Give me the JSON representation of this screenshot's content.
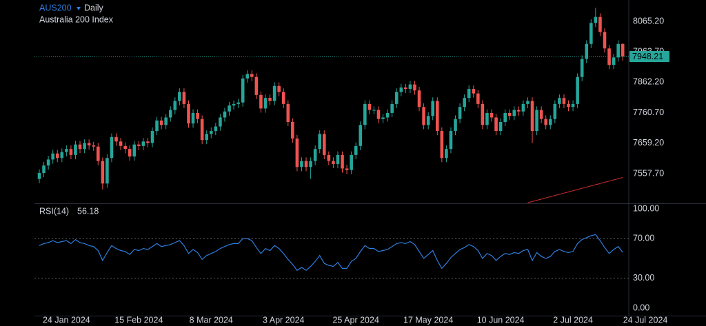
{
  "chart_data": [
    {
      "type": "candlestick",
      "symbol": "AUS200",
      "interval": "Daily",
      "subtitle": "Australia 200 Index",
      "up_color": "#26a69a",
      "down_color": "#ef5350",
      "last_price_line": true,
      "ylim": [
        7459,
        8136.4
      ],
      "yticks": [
        {
          "value": 7557.7,
          "label": "7557.70"
        },
        {
          "value": 7659.2,
          "label": "7659.20"
        },
        {
          "value": 7760.7,
          "label": "7760.70"
        },
        {
          "value": 7862.2,
          "label": "7862.20"
        },
        {
          "value": 7963.7,
          "label": "7963.70"
        },
        {
          "value": 8065.2,
          "label": "8065.20"
        }
      ],
      "open": [
        7540,
        7560,
        7585,
        7605,
        7625,
        7610,
        7630,
        7640,
        7620,
        7655,
        7640,
        7660,
        7652,
        7648,
        7600,
        7525,
        7610,
        7680,
        7665,
        7650,
        7640,
        7615,
        7655,
        7650,
        7665,
        7660,
        7700,
        7735,
        7720,
        7745,
        7770,
        7800,
        7830,
        7790,
        7725,
        7760,
        7740,
        7670,
        7690,
        7700,
        7715,
        7745,
        7765,
        7785,
        7790,
        7795,
        7875,
        7890,
        7880,
        7820,
        7775,
        7810,
        7800,
        7850,
        7830,
        7790,
        7730,
        7675,
        7580,
        7600,
        7580,
        7600,
        7640,
        7690,
        7620,
        7600,
        7590,
        7620,
        7575,
        7570,
        7620,
        7650,
        7720,
        7790,
        7770,
        7770,
        7740,
        7745,
        7760,
        7790,
        7830,
        7845,
        7840,
        7855,
        7835,
        7780,
        7720,
        7750,
        7800,
        7700,
        7610,
        7640,
        7700,
        7740,
        7780,
        7810,
        7840,
        7825,
        7790,
        7720,
        7760,
        7745,
        7700,
        7730,
        7760,
        7750,
        7770,
        7765,
        7790,
        7800,
        7700,
        7770,
        7740,
        7720,
        7740,
        7790,
        7810,
        7790,
        7780,
        7790,
        7880,
        7940,
        7990,
        8060,
        8080,
        8030,
        7975,
        7920,
        7945,
        7990,
        null,
        null,
        null,
        null,
        null
      ],
      "high": [
        7572,
        7597,
        7617,
        7637,
        7637,
        7642,
        7652,
        7652,
        7667,
        7667,
        7672,
        7672,
        7664,
        7660,
        7612,
        7622,
        7692,
        7692,
        7677,
        7662,
        7652,
        7667,
        7667,
        7677,
        7677,
        7712,
        7747,
        7747,
        7757,
        7782,
        7812,
        7842,
        7842,
        7802,
        7772,
        7772,
        7752,
        7702,
        7712,
        7727,
        7757,
        7777,
        7797,
        7802,
        7807,
        7887,
        7902,
        7902,
        7892,
        7832,
        7822,
        7822,
        7862,
        7862,
        7842,
        7802,
        7742,
        7687,
        7612,
        7612,
        7612,
        7652,
        7702,
        7702,
        7632,
        7612,
        7632,
        7632,
        7587,
        7632,
        7662,
        7732,
        7802,
        7802,
        7782,
        7782,
        7757,
        7772,
        7802,
        7842,
        7857,
        7857,
        7867,
        7867,
        7847,
        7792,
        7762,
        7812,
        7812,
        7712,
        7652,
        7712,
        7752,
        7792,
        7822,
        7852,
        7852,
        7837,
        7802,
        7772,
        7772,
        7757,
        7742,
        7772,
        7772,
        7782,
        7782,
        7802,
        7812,
        7812,
        7782,
        7782,
        7752,
        7752,
        7802,
        7822,
        7822,
        7802,
        7802,
        7892,
        7952,
        8002,
        8072,
        8110,
        8092,
        8042,
        7987,
        7957,
        8002,
        7992,
        null,
        null,
        null,
        null,
        null
      ],
      "low": [
        7526,
        7546,
        7571,
        7591,
        7596,
        7596,
        7616,
        7606,
        7606,
        7626,
        7626,
        7638,
        7634,
        7586,
        7505,
        7511,
        7596,
        7651,
        7636,
        7626,
        7601,
        7601,
        7636,
        7636,
        7646,
        7646,
        7686,
        7706,
        7706,
        7731,
        7756,
        7786,
        7776,
        7711,
        7711,
        7726,
        7656,
        7656,
        7676,
        7686,
        7701,
        7731,
        7751,
        7771,
        7776,
        7781,
        7861,
        7866,
        7806,
        7761,
        7761,
        7786,
        7786,
        7816,
        7776,
        7716,
        7661,
        7566,
        7566,
        7566,
        7540,
        7586,
        7626,
        7606,
        7586,
        7576,
        7576,
        7561,
        7556,
        7556,
        7606,
        7636,
        7706,
        7756,
        7756,
        7726,
        7726,
        7731,
        7746,
        7776,
        7816,
        7826,
        7826,
        7821,
        7766,
        7706,
        7706,
        7736,
        7686,
        7596,
        7596,
        7626,
        7686,
        7726,
        7766,
        7796,
        7811,
        7776,
        7706,
        7706,
        7731,
        7686,
        7686,
        7716,
        7736,
        7736,
        7751,
        7751,
        7776,
        7660,
        7686,
        7726,
        7706,
        7706,
        7726,
        7776,
        7776,
        7766,
        7766,
        7776,
        7866,
        7926,
        7976,
        8046,
        8016,
        7961,
        7906,
        7906,
        7931,
        7934,
        null,
        null,
        null,
        null,
        null
      ],
      "close": [
        7560,
        7585,
        7605,
        7625,
        7610,
        7630,
        7640,
        7620,
        7655,
        7640,
        7660,
        7652,
        7648,
        7600,
        7525,
        7610,
        7680,
        7665,
        7650,
        7640,
        7615,
        7655,
        7650,
        7665,
        7660,
        7700,
        7735,
        7720,
        7745,
        7770,
        7800,
        7830,
        7790,
        7725,
        7760,
        7740,
        7670,
        7690,
        7700,
        7715,
        7745,
        7765,
        7785,
        7790,
        7795,
        7875,
        7890,
        7880,
        7820,
        7775,
        7810,
        7800,
        7850,
        7830,
        7790,
        7730,
        7675,
        7580,
        7600,
        7580,
        7600,
        7640,
        7690,
        7620,
        7600,
        7590,
        7620,
        7575,
        7570,
        7620,
        7650,
        7720,
        7790,
        7770,
        7770,
        7740,
        7745,
        7760,
        7790,
        7830,
        7845,
        7840,
        7855,
        7835,
        7780,
        7720,
        7750,
        7800,
        7700,
        7610,
        7640,
        7700,
        7740,
        7780,
        7810,
        7840,
        7825,
        7790,
        7720,
        7760,
        7745,
        7700,
        7730,
        7760,
        7750,
        7770,
        7765,
        7790,
        7800,
        7700,
        7770,
        7740,
        7720,
        7740,
        7790,
        7810,
        7790,
        7780,
        7790,
        7880,
        7940,
        7990,
        8060,
        8080,
        8030,
        7975,
        7920,
        7945,
        7990,
        7948.21,
        null,
        null,
        null,
        null,
        null
      ],
      "ma": {
        "color": "#d32f2f",
        "values": [
          null,
          null,
          null,
          null,
          null,
          null,
          null,
          null,
          null,
          null,
          null,
          null,
          null,
          null,
          null,
          null,
          null,
          null,
          null,
          null,
          null,
          null,
          null,
          null,
          null,
          null,
          null,
          null,
          null,
          null,
          null,
          null,
          null,
          null,
          null,
          null,
          null,
          null,
          null,
          null,
          null,
          null,
          null,
          null,
          null,
          null,
          null,
          null,
          null,
          null,
          null,
          null,
          null,
          null,
          null,
          null,
          null,
          null,
          null,
          null,
          null,
          null,
          null,
          null,
          null,
          null,
          null,
          null,
          null,
          null,
          null,
          null,
          null,
          null,
          null,
          null,
          null,
          null,
          null,
          null,
          null,
          null,
          null,
          null,
          null,
          null,
          null,
          null,
          null,
          null,
          null,
          null,
          null,
          null,
          null,
          null,
          null,
          null,
          null,
          null,
          null,
          null,
          null,
          null,
          null,
          null,
          null,
          null,
          7461,
          7465,
          7469,
          7473,
          7477,
          7481,
          7485,
          7489,
          7493,
          7497,
          7501,
          7505,
          7509,
          7513,
          7517,
          7521,
          7525,
          7529,
          7533,
          7537,
          7541,
          7545,
          null,
          null,
          null,
          null,
          null
        ]
      }
    },
    {
      "type": "line",
      "title": "RSI(14)",
      "color": "#2f7fe0",
      "ylim": [
        0,
        100
      ],
      "yticks": [
        {
          "value": 0,
          "label": "0.00"
        },
        {
          "value": 30,
          "label": "30.00"
        },
        {
          "value": 70,
          "label": "70.00"
        },
        {
          "value": 100,
          "label": "100.00"
        }
      ],
      "reference_lines": [
        70,
        30
      ],
      "categories": [
        null,
        null,
        null,
        null,
        null,
        null,
        "24 Jan 2024",
        null,
        null,
        null,
        null,
        null,
        null,
        null,
        null,
        null,
        null,
        null,
        null,
        null,
        null,
        null,
        "15 Feb 2024",
        null,
        null,
        null,
        null,
        null,
        null,
        null,
        null,
        null,
        null,
        null,
        null,
        null,
        null,
        null,
        "8 Mar 2024",
        null,
        null,
        null,
        null,
        null,
        null,
        null,
        null,
        null,
        null,
        null,
        null,
        null,
        null,
        null,
        "3 Apr 2024",
        null,
        null,
        null,
        null,
        null,
        null,
        null,
        null,
        null,
        null,
        null,
        null,
        null,
        null,
        null,
        "25 Apr 2024",
        null,
        null,
        null,
        null,
        null,
        null,
        null,
        null,
        null,
        null,
        null,
        null,
        null,
        null,
        null,
        "17 May 2024",
        null,
        null,
        null,
        null,
        null,
        null,
        null,
        null,
        null,
        null,
        null,
        null,
        null,
        null,
        null,
        "10 Jun 2024",
        null,
        null,
        null,
        null,
        null,
        null,
        null,
        null,
        null,
        null,
        null,
        null,
        null,
        null,
        null,
        "2 Jul 2024",
        null,
        null,
        null,
        null,
        null,
        null,
        null,
        null,
        null,
        null,
        null,
        null,
        null,
        null,
        null,
        "24 Jul 2024"
      ],
      "values": [
        63,
        65,
        66,
        68,
        66,
        67,
        68,
        65,
        69,
        66,
        65,
        63,
        62,
        58,
        48,
        56,
        63,
        60,
        58,
        57,
        54,
        59,
        58,
        60,
        59,
        62,
        65,
        62,
        63,
        64,
        66,
        68,
        63,
        55,
        59,
        56,
        49,
        53,
        55,
        57,
        60,
        62,
        64,
        65,
        65,
        70,
        70,
        68,
        61,
        55,
        60,
        58,
        63,
        60,
        55,
        49,
        44,
        38,
        41,
        38,
        42,
        47,
        53,
        45,
        43,
        42,
        46,
        40,
        40,
        47,
        50,
        57,
        63,
        60,
        60,
        57,
        58,
        59,
        62,
        65,
        66,
        65,
        67,
        64,
        57,
        50,
        54,
        58,
        48,
        40,
        45,
        51,
        55,
        59,
        61,
        64,
        62,
        58,
        50,
        55,
        53,
        48,
        52,
        55,
        54,
        56,
        55,
        58,
        59,
        48,
        56,
        52,
        50,
        52,
        57,
        59,
        57,
        56,
        57,
        65,
        69,
        71,
        73,
        74,
        68,
        61,
        55,
        59,
        62,
        56.18,
        null,
        null,
        null,
        null,
        null
      ]
    }
  ]
}
